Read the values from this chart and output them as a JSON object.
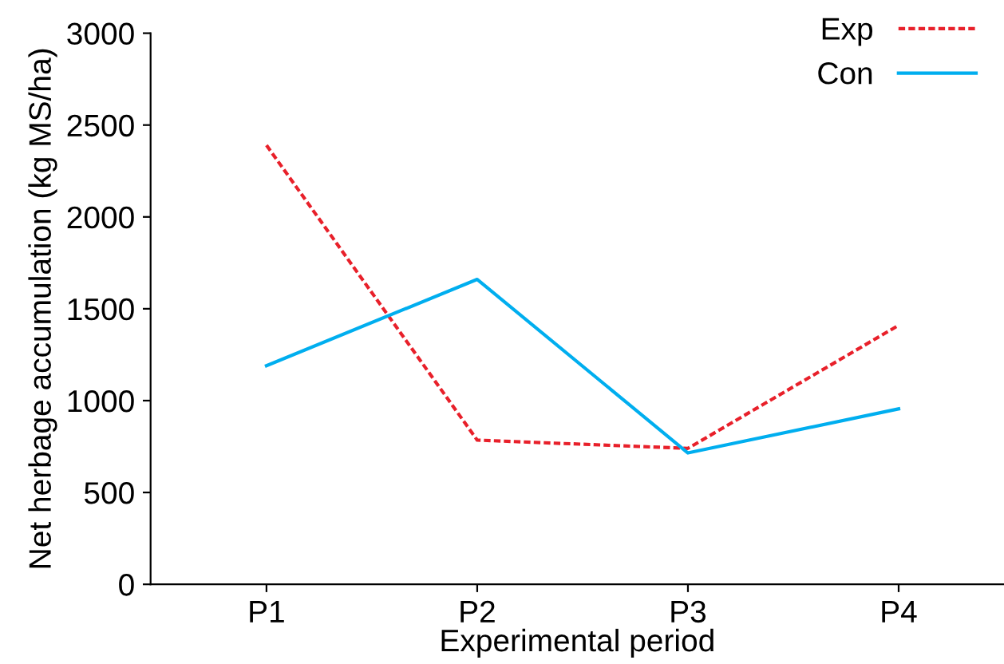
{
  "chart_data": {
    "type": "line",
    "xlabel": "Experimental period",
    "ylabel": "Net herbage accumulation (kg MS/ha)",
    "categories": [
      "P1",
      "P2",
      "P3",
      "P4"
    ],
    "series": [
      {
        "name": "Exp",
        "color": "#e8202a",
        "line_style": "dotted",
        "values": [
          2390,
          785,
          740,
          1410
        ]
      },
      {
        "name": "Con",
        "color": "#00aeef",
        "line_style": "solid",
        "values": [
          1190,
          1660,
          715,
          955
        ]
      }
    ],
    "ylim": [
      0,
      3000
    ],
    "yticks": [
      0,
      500,
      1000,
      1500,
      2000,
      2500,
      3000
    ],
    "grid": false,
    "legend": "top right",
    "marker": "none"
  }
}
